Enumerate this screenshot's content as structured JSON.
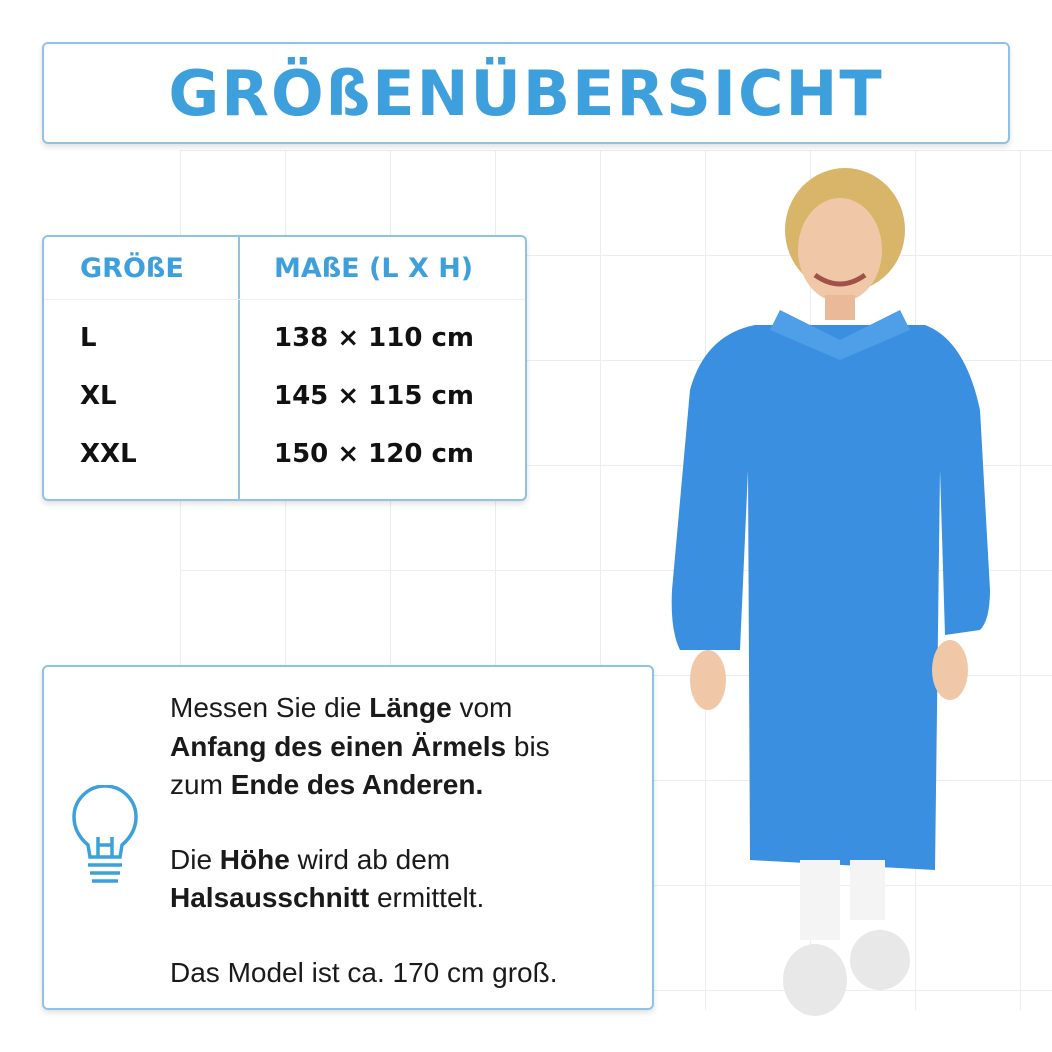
{
  "title": "GRÖßENÜBERSICHT",
  "size_table": {
    "headers": [
      "GRÖßE",
      "MAßE (L X H)"
    ],
    "rows": [
      {
        "size": "L",
        "dimensions": "138 × 110 cm"
      },
      {
        "size": "XL",
        "dimensions": "145 × 115 cm"
      },
      {
        "size": "XXL",
        "dimensions": "150 × 120 cm"
      }
    ]
  },
  "info": {
    "icon": "lightbulb-icon",
    "p1": [
      "Messen Sie die ",
      "Länge",
      " vom ",
      "Anfang des einen Ärmels",
      " bis zum ",
      "Ende des Anderen."
    ],
    "p2": [
      "Die ",
      "Höhe",
      " wird ab dem ",
      "Halsausschnitt",
      " ermittelt."
    ],
    "p3": "Das Model ist ca. 170 cm groß."
  },
  "colors": {
    "accent": "#3da0dc",
    "border": "#8fc3e4",
    "gown": "#3a8fe0"
  }
}
